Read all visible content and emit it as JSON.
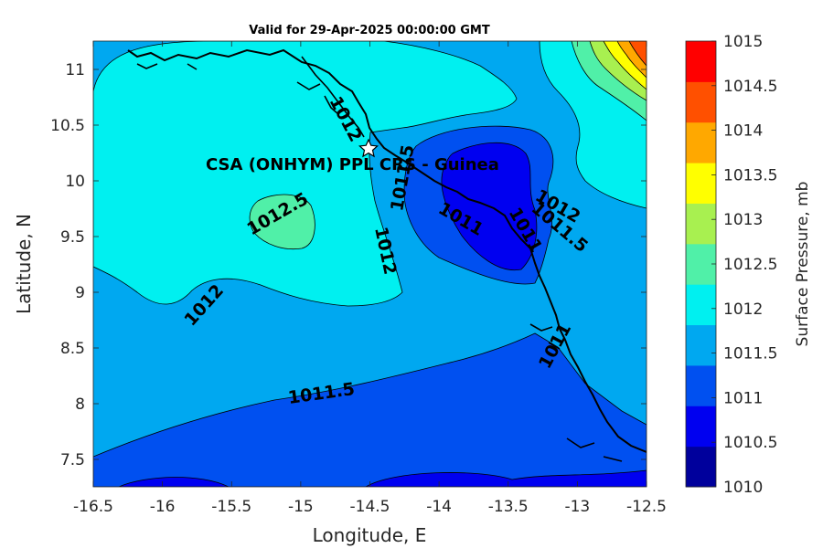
{
  "title": "Valid for 29-Apr-2025 00:00:00 GMT",
  "xlabel": "Longitude, E",
  "ylabel": "Latitude, N",
  "xticks": [
    "-16.5",
    "-16",
    "-15.5",
    "-15",
    "-14.5",
    "-14",
    "-13.5",
    "-13",
    "-12.5"
  ],
  "yticks": [
    "11",
    "10.5",
    "10",
    "9.5",
    "9",
    "8.5",
    "8",
    "7.5"
  ],
  "colorbar": {
    "label": "Surface Pressure, mb",
    "ticks": [
      "1015",
      "1014.5",
      "1014",
      "1013.5",
      "1013",
      "1012.5",
      "1012",
      "1011.5",
      "1011",
      "1010.5",
      "1010"
    ],
    "colors": [
      "#00009c",
      "#0000f0",
      "#0050f0",
      "#00a8f0",
      "#00f0f0",
      "#50f0a8",
      "#a8f050",
      "#ffff00",
      "#ffa800",
      "#ff5000",
      "#ff0000"
    ]
  },
  "station": {
    "label": "CSA (ONHYM) PPL CRS  - Guinea",
    "lon": -14.5,
    "lat": 10.28
  },
  "contour_labels": [
    "1012",
    "1012.5",
    "1012",
    "1012",
    "1011.5",
    "1011.5",
    "1011",
    "1011",
    "1012",
    "1011.5",
    "1011"
  ],
  "chart_data": {
    "type": "heatmap",
    "title": "Valid for 29-Apr-2025 00:00:00 GMT",
    "xlabel": "Longitude, E",
    "ylabel": "Latitude, N",
    "xlim": [
      -16.5,
      -12.5
    ],
    "ylim": [
      7.25,
      11.25
    ],
    "zlabel": "Surface Pressure, mb",
    "zlim": [
      1010,
      1015
    ],
    "levels": [
      1010,
      1010.5,
      1011,
      1011.5,
      1012,
      1012.5,
      1013,
      1013.5,
      1014,
      1014.5,
      1015
    ],
    "station": {
      "name": "CSA (ONHYM) PPL CRS  - Guinea",
      "lon": -14.5,
      "lat": 10.28
    }
  }
}
